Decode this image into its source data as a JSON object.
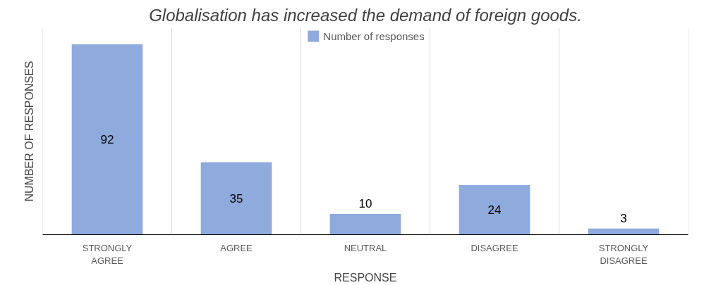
{
  "chart_data": {
    "type": "bar",
    "title": "Globalisation has increased the demand of foreign goods.",
    "xlabel": "RESPONSE",
    "ylabel": "NUMBER OF RESPONSES",
    "categories": [
      "STRONGLY AGREE",
      "AGREE",
      "NEUTRAL",
      "DISAGREE",
      "STRONGLY DISAGREE"
    ],
    "series": [
      {
        "name": "Number of responses",
        "color": "#8faadc",
        "values": [
          92,
          35,
          10,
          24,
          3
        ]
      }
    ],
    "ylim": [
      0,
      100
    ],
    "data_labels": true,
    "grid": "x",
    "legend": "top",
    "tick_labels": "x"
  }
}
